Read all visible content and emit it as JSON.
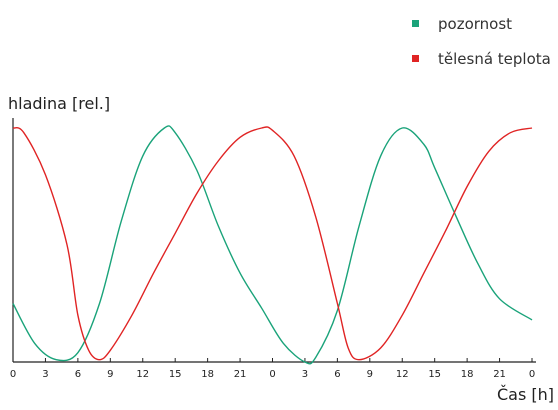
{
  "chart_data": {
    "type": "line",
    "title": "",
    "xlabel": "Čas [h]",
    "ylabel": "hladina [rel.]",
    "x_tick_labels": [
      "0",
      "3",
      "6",
      "9",
      "12",
      "15",
      "18",
      "21",
      "0",
      "3",
      "6",
      "9",
      "12",
      "15",
      "18",
      "21",
      "0"
    ],
    "xlim": [
      0,
      48
    ],
    "ylim": [
      0,
      1
    ],
    "grid": false,
    "legend_position": "top-right",
    "series": [
      {
        "name": "pozornost",
        "color": "#1aa37a",
        "x": [
          0,
          2,
          4,
          6,
          8,
          10,
          12,
          14,
          15,
          17,
          19,
          21,
          23,
          25,
          27,
          28,
          30,
          32,
          34,
          36,
          38,
          39,
          41,
          43,
          45,
          48
        ],
        "y": [
          0.25,
          0.08,
          0.01,
          0.04,
          0.25,
          0.6,
          0.88,
          1.0,
          0.98,
          0.82,
          0.58,
          0.38,
          0.23,
          0.08,
          0.0,
          0.02,
          0.22,
          0.58,
          0.88,
          1.0,
          0.93,
          0.83,
          0.62,
          0.42,
          0.27,
          0.18
        ]
      },
      {
        "name": "tělesná teplota",
        "color": "#e02424",
        "x": [
          0,
          1,
          3,
          5,
          6,
          7,
          8,
          9,
          11,
          13,
          15,
          17,
          19,
          21,
          23,
          24,
          26,
          28,
          30,
          31,
          32,
          34,
          36,
          38,
          40,
          42,
          44,
          46,
          48
        ],
        "y": [
          1.0,
          0.98,
          0.8,
          0.5,
          0.2,
          0.05,
          0.01,
          0.05,
          0.2,
          0.38,
          0.55,
          0.72,
          0.86,
          0.96,
          1.0,
          0.99,
          0.88,
          0.62,
          0.25,
          0.06,
          0.01,
          0.06,
          0.2,
          0.38,
          0.56,
          0.75,
          0.9,
          0.98,
          1.0
        ]
      }
    ]
  }
}
